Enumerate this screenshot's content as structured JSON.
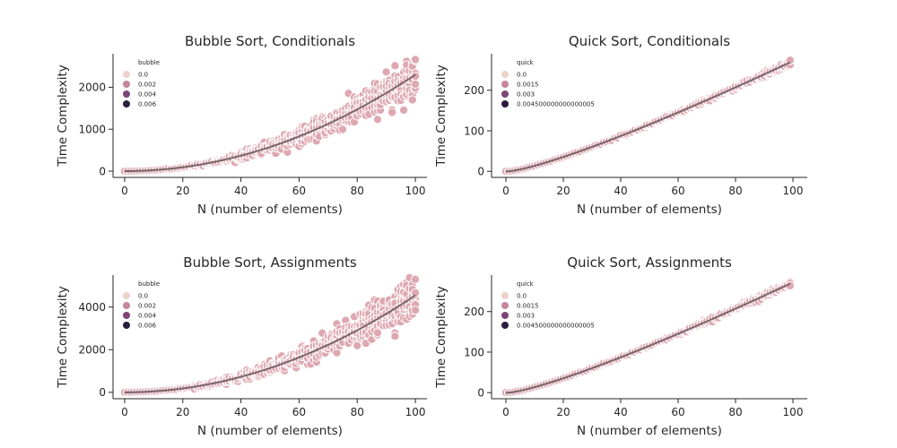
{
  "chart_data": [
    {
      "type": "scatter",
      "title": "Bubble Sort, Conditionals",
      "xlabel": "N (number of elements)",
      "ylabel": "Time Complexity",
      "xlim": [
        -4,
        104
      ],
      "ylim": [
        -150,
        2800
      ],
      "xticks": [
        0,
        20,
        40,
        60,
        80,
        100
      ],
      "yticks": [
        0,
        1000,
        2000
      ],
      "xtick_labels": [
        "0",
        "20",
        "40",
        "60",
        "80",
        "100"
      ],
      "ytick_labels": [
        "0",
        "1000",
        "2000"
      ],
      "legend": {
        "title": "bubble",
        "entries": [
          "0.0",
          "0.002",
          "0.004",
          "0.006"
        ],
        "colors": [
          "#ebd3cb",
          "#c6869c",
          "#7c4677",
          "#2c1e3e"
        ]
      },
      "trend": {
        "type": "quadratic",
        "coef": 0.23,
        "x_range": [
          0,
          100
        ]
      },
      "scatter": {
        "model": "quadratic",
        "coef": 0.23,
        "n_max": 100,
        "spread": 0.11
      }
    },
    {
      "type": "scatter",
      "title": "Quick Sort, Conditionals",
      "xlabel": "N (number of elements)",
      "ylabel": "Time Complexity",
      "xlim": [
        -5,
        105
      ],
      "ylim": [
        -15,
        290
      ],
      "xticks": [
        0,
        20,
        40,
        60,
        80,
        100
      ],
      "yticks": [
        0,
        100,
        200
      ],
      "xtick_labels": [
        "0",
        "20",
        "40",
        "60",
        "80",
        "100"
      ],
      "ytick_labels": [
        "0",
        "100",
        "200"
      ],
      "legend": {
        "title": "quick",
        "entries": [
          "0.0",
          "0.0015",
          "0.003",
          "0.004500000000000005"
        ],
        "colors": [
          "#ebd3cb",
          "#c6869c",
          "#7c4677",
          "#2c1e3e"
        ]
      },
      "trend": {
        "type": "nlogn",
        "coef": 0.4095,
        "x_range": [
          0,
          99
        ]
      },
      "scatter": {
        "model": "nlogn",
        "coef": 0.4095,
        "n_max": 99,
        "spread": 0.012
      }
    },
    {
      "type": "scatter",
      "title": "Bubble Sort, Assignments",
      "xlabel": "N (number of elements)",
      "ylabel": "Time Complexity",
      "xlim": [
        -4,
        104
      ],
      "ylim": [
        -300,
        5500
      ],
      "xticks": [
        0,
        20,
        40,
        60,
        80,
        100
      ],
      "yticks": [
        0,
        2000,
        4000
      ],
      "xtick_labels": [
        "0",
        "20",
        "40",
        "60",
        "80",
        "100"
      ],
      "ytick_labels": [
        "0",
        "2000",
        "4000"
      ],
      "legend": {
        "title": "bubble",
        "entries": [
          "0.0",
          "0.002",
          "0.004",
          "0.006"
        ],
        "colors": [
          "#ebd3cb",
          "#c6869c",
          "#7c4677",
          "#2c1e3e"
        ]
      },
      "trend": {
        "type": "quadratic",
        "coef": 0.455,
        "x_range": [
          0,
          100
        ]
      },
      "scatter": {
        "model": "quadratic",
        "coef": 0.455,
        "n_max": 100,
        "spread": 0.11
      }
    },
    {
      "type": "scatter",
      "title": "Quick Sort, Assignments",
      "xlabel": "N (number of elements)",
      "ylabel": "Time Complexity",
      "xlim": [
        -5,
        105
      ],
      "ylim": [
        -15,
        290
      ],
      "xticks": [
        0,
        20,
        40,
        60,
        80,
        100
      ],
      "yticks": [
        0,
        100,
        200
      ],
      "xtick_labels": [
        "0",
        "20",
        "40",
        "60",
        "80",
        "100"
      ],
      "ytick_labels": [
        "0",
        "100",
        "200"
      ],
      "legend": {
        "title": "quick",
        "entries": [
          "0.0",
          "0.0015",
          "0.003",
          "0.004500000000000005"
        ],
        "colors": [
          "#ebd3cb",
          "#c6869c",
          "#7c4677",
          "#2c1e3e"
        ]
      },
      "trend": {
        "type": "nlogn",
        "coef": 0.4095,
        "x_range": [
          0,
          99
        ]
      },
      "scatter": {
        "model": "nlogn",
        "coef": 0.4095,
        "n_max": 99,
        "spread": 0.012
      }
    }
  ],
  "style": {
    "trend_color": "#6b5a5e",
    "point_fill": "#dea8b1",
    "point_stroke": "#ffffff"
  }
}
